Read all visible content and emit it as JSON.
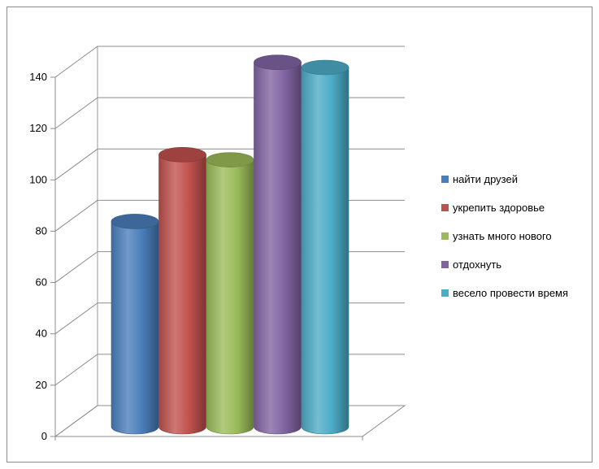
{
  "chart_data": {
    "type": "bar",
    "title": "",
    "xlabel": "",
    "ylabel": "",
    "ylim": [
      0,
      140
    ],
    "y_ticks": [
      "0",
      "20",
      "40",
      "60",
      "80",
      "100",
      "120",
      "140"
    ],
    "grid": true,
    "style": "3d-cylinder",
    "legend_position": "right",
    "series": [
      {
        "name": "найти друзей",
        "value": 80,
        "color": "#4a7ebb"
      },
      {
        "name": "укрепить здоровье",
        "value": 106,
        "color": "#c0504d"
      },
      {
        "name": "узнать много нового",
        "value": 104,
        "color": "#9bbb59"
      },
      {
        "name": "отдохнуть",
        "value": 142,
        "color": "#8064a2"
      },
      {
        "name": "весело провести время",
        "value": 140,
        "color": "#4bacc6"
      }
    ]
  }
}
